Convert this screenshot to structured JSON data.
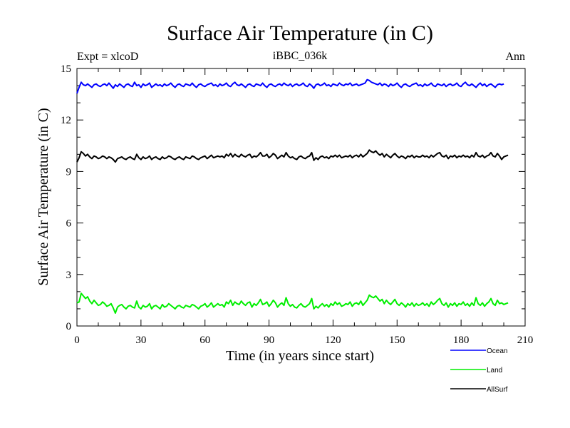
{
  "chart_data": {
    "type": "line",
    "title": "Surface Air Temperature (in C)",
    "subtitle": "iBBC_036k",
    "left_annotation": "Expt = xlcoD",
    "right_annotation": "Ann",
    "xlabel": "Time (in years since start)",
    "ylabel": "Surface Air Temperature (in C)",
    "xlim": [
      0,
      210
    ],
    "ylim": [
      0,
      15
    ],
    "xticks": [
      0,
      30,
      60,
      90,
      120,
      150,
      180,
      210
    ],
    "yticks": [
      0,
      3,
      6,
      9,
      12,
      15
    ],
    "x_start": 0,
    "x_step": 1,
    "legend_position": "bottom-right",
    "series": [
      {
        "name": "Ocean",
        "color": "#0000ff",
        "values": [
          13.55,
          13.9,
          14.2,
          14.05,
          14.0,
          14.1,
          14.0,
          13.9,
          14.05,
          14.1,
          14.0,
          13.95,
          14.05,
          14.1,
          14.0,
          14.15,
          14.0,
          13.85,
          14.05,
          13.95,
          14.1,
          14.0,
          13.9,
          14.05,
          14.1,
          14.0,
          13.95,
          14.2,
          14.0,
          14.05,
          13.9,
          14.1,
          14.0,
          14.05,
          14.15,
          13.9,
          14.0,
          14.1,
          14.0,
          14.05,
          13.95,
          14.1,
          14.0,
          14.05,
          14.15,
          14.0,
          13.9,
          14.05,
          14.1,
          14.0,
          13.95,
          14.1,
          14.05,
          14.0,
          14.15,
          14.0,
          13.9,
          14.05,
          14.1,
          14.0,
          13.95,
          14.05,
          14.1,
          14.15,
          14.0,
          14.05,
          13.95,
          14.1,
          14.0,
          14.05,
          14.15,
          14.0,
          13.95,
          14.1,
          14.2,
          14.05,
          14.0,
          14.1,
          14.0,
          13.9,
          14.05,
          14.1,
          14.0,
          13.95,
          14.1,
          14.05,
          14.0,
          14.15,
          14.0,
          13.9,
          14.05,
          14.1,
          14.0,
          13.95,
          14.05,
          14.1,
          14.0,
          14.15,
          14.05,
          14.0,
          14.1,
          13.95,
          14.05,
          14.1,
          14.0,
          14.05,
          14.15,
          14.0,
          13.95,
          14.1,
          14.0,
          13.85,
          14.05,
          14.1,
          14.0,
          14.05,
          14.15,
          14.0,
          14.05,
          13.95,
          14.1,
          14.05,
          14.0,
          14.15,
          14.05,
          14.0,
          14.1,
          14.05,
          14.15,
          14.0,
          14.05,
          14.1,
          14.0,
          14.05,
          14.1,
          14.15,
          14.35,
          14.3,
          14.2,
          14.15,
          14.1,
          14.05,
          14.15,
          14.0,
          14.1,
          14.05,
          13.95,
          14.1,
          14.0,
          14.05,
          14.15,
          14.0,
          13.9,
          14.05,
          14.1,
          14.0,
          13.95,
          14.05,
          14.1,
          14.15,
          14.0,
          14.05,
          13.95,
          14.1,
          14.0,
          14.05,
          14.15,
          14.0,
          13.95,
          14.1,
          14.05,
          14.0,
          14.1,
          13.95,
          14.05,
          14.1,
          14.0,
          14.05,
          14.15,
          14.0,
          13.95,
          14.1,
          14.2,
          14.05,
          14.0,
          14.1,
          14.0,
          13.9,
          14.05,
          14.15,
          14.0,
          14.1,
          13.95,
          14.05,
          14.1,
          14.0,
          13.9,
          14.05,
          14.1,
          14.05,
          14.1
        ]
      },
      {
        "name": "Land",
        "color": "#00ee00",
        "values": [
          1.35,
          1.4,
          1.9,
          1.75,
          1.6,
          1.7,
          1.45,
          1.3,
          1.5,
          1.35,
          1.2,
          1.25,
          1.4,
          1.3,
          1.15,
          1.2,
          1.3,
          1.05,
          0.75,
          1.1,
          1.2,
          1.25,
          1.1,
          1.0,
          1.15,
          1.2,
          1.1,
          1.05,
          1.45,
          1.1,
          1.0,
          1.2,
          1.1,
          1.15,
          1.3,
          1.0,
          1.15,
          1.2,
          1.1,
          1.0,
          1.25,
          1.1,
          1.15,
          1.3,
          1.2,
          1.1,
          1.0,
          1.15,
          1.2,
          1.1,
          1.05,
          1.2,
          1.15,
          1.1,
          1.25,
          1.2,
          1.1,
          1.0,
          1.15,
          1.2,
          1.3,
          1.1,
          1.2,
          1.35,
          1.1,
          1.2,
          1.3,
          1.2,
          1.25,
          1.1,
          1.4,
          1.3,
          1.5,
          1.2,
          1.4,
          1.3,
          1.25,
          1.45,
          1.3,
          1.2,
          1.35,
          1.4,
          1.1,
          1.3,
          1.2,
          1.35,
          1.55,
          1.25,
          1.3,
          1.4,
          1.15,
          1.3,
          1.5,
          1.35,
          1.1,
          1.25,
          1.35,
          1.2,
          1.65,
          1.3,
          1.15,
          1.25,
          1.1,
          1.05,
          1.2,
          1.3,
          1.15,
          1.1,
          1.2,
          1.3,
          1.6,
          1.0,
          1.15,
          1.05,
          1.2,
          1.3,
          1.15,
          1.25,
          1.1,
          1.3,
          1.2,
          1.4,
          1.25,
          1.35,
          1.15,
          1.2,
          1.3,
          1.25,
          1.4,
          1.15,
          1.3,
          1.35,
          1.25,
          1.45,
          1.2,
          1.35,
          1.5,
          1.8,
          1.7,
          1.65,
          1.75,
          1.6,
          1.45,
          1.55,
          1.3,
          1.5,
          1.35,
          1.25,
          1.4,
          1.55,
          1.3,
          1.2,
          1.35,
          1.25,
          1.1,
          1.3,
          1.2,
          1.35,
          1.15,
          1.3,
          1.2,
          1.25,
          1.35,
          1.2,
          1.3,
          1.15,
          1.4,
          1.25,
          1.35,
          1.5,
          1.6,
          1.3,
          1.2,
          1.35,
          1.1,
          1.3,
          1.2,
          1.35,
          1.15,
          1.3,
          1.25,
          1.4,
          1.2,
          1.3,
          1.15,
          1.35,
          1.2,
          1.65,
          1.3,
          1.2,
          1.35,
          1.15,
          1.3,
          1.4,
          1.6,
          1.3,
          1.2,
          1.5,
          1.3,
          1.35,
          1.25,
          1.3,
          1.35
        ]
      },
      {
        "name": "AllSurf",
        "color": "#000000",
        "values": [
          9.55,
          9.8,
          10.15,
          10.05,
          9.9,
          10.0,
          9.85,
          9.75,
          9.9,
          9.85,
          9.75,
          9.8,
          9.9,
          9.85,
          9.75,
          9.85,
          9.8,
          9.7,
          9.55,
          9.75,
          9.8,
          9.85,
          9.75,
          9.7,
          9.8,
          9.85,
          9.75,
          9.7,
          10.0,
          9.8,
          9.7,
          9.85,
          9.75,
          9.8,
          9.9,
          9.7,
          9.8,
          9.85,
          9.75,
          9.7,
          9.85,
          9.75,
          9.8,
          9.9,
          9.85,
          9.75,
          9.7,
          9.8,
          9.85,
          9.75,
          9.7,
          9.85,
          9.8,
          9.75,
          9.9,
          9.85,
          9.75,
          9.7,
          9.8,
          9.85,
          9.9,
          9.75,
          9.85,
          9.95,
          9.8,
          9.85,
          9.9,
          9.85,
          9.9,
          9.8,
          10.0,
          9.9,
          10.05,
          9.85,
          10.0,
          9.9,
          9.85,
          10.0,
          9.9,
          9.85,
          9.95,
          10.0,
          9.8,
          9.9,
          9.85,
          9.95,
          10.1,
          9.9,
          9.9,
          10.0,
          9.8,
          9.9,
          10.05,
          9.95,
          9.75,
          9.85,
          9.95,
          9.85,
          10.1,
          9.9,
          9.8,
          9.85,
          9.75,
          9.7,
          9.85,
          9.9,
          9.8,
          9.75,
          9.85,
          9.9,
          10.1,
          9.65,
          9.8,
          9.7,
          9.85,
          9.9,
          9.8,
          9.85,
          9.75,
          9.9,
          9.85,
          9.95,
          9.85,
          9.95,
          9.8,
          9.85,
          9.9,
          9.85,
          9.95,
          9.8,
          9.9,
          9.95,
          9.85,
          10.0,
          9.85,
          9.95,
          10.05,
          10.25,
          10.15,
          10.1,
          10.2,
          10.05,
          9.95,
          10.05,
          9.85,
          10.0,
          9.9,
          9.8,
          9.95,
          10.05,
          9.9,
          9.8,
          9.9,
          9.85,
          9.75,
          9.9,
          9.85,
          9.95,
          9.8,
          9.9,
          9.85,
          9.85,
          9.95,
          9.85,
          9.9,
          9.8,
          9.95,
          9.85,
          9.95,
          10.05,
          10.1,
          9.9,
          9.85,
          9.95,
          9.75,
          9.9,
          9.85,
          9.95,
          9.8,
          9.9,
          9.85,
          9.95,
          9.85,
          9.9,
          9.8,
          9.95,
          9.85,
          10.1,
          9.9,
          9.85,
          9.95,
          9.8,
          9.9,
          9.95,
          10.1,
          9.9,
          9.85,
          10.05,
          9.9,
          9.7,
          9.85,
          9.9,
          9.95
        ]
      }
    ]
  }
}
